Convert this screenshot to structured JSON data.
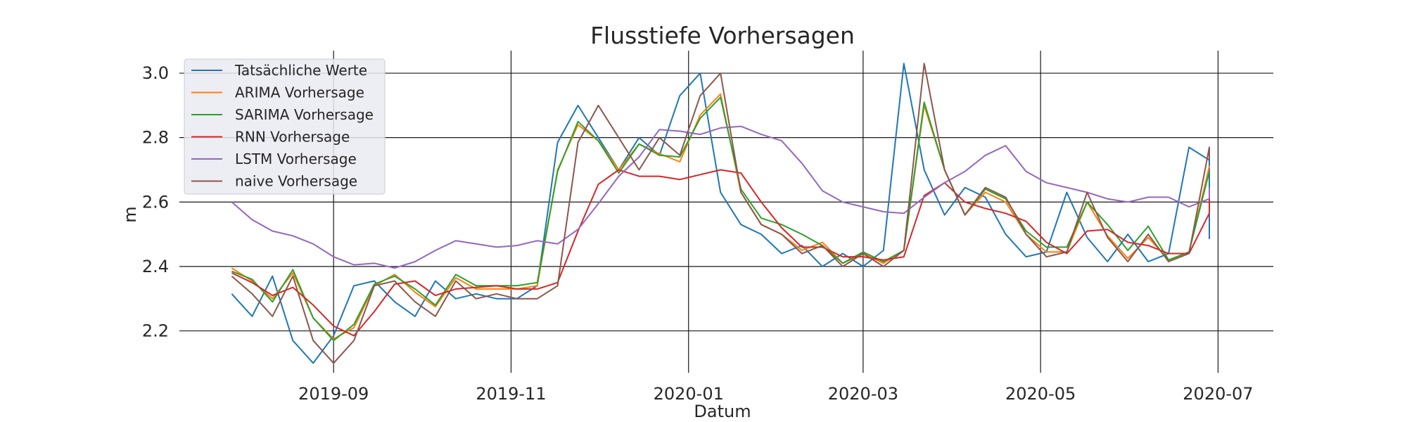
{
  "chart_data": {
    "type": "line",
    "title": "Flusstiefe Vorhersagen",
    "xlabel": "Datum",
    "ylabel": "m",
    "x_axis": "date",
    "xlim": [
      "2019-07-10",
      "2020-07-20"
    ],
    "ylim": [
      2.07,
      3.07
    ],
    "yticks": [
      2.2,
      2.4,
      2.6,
      2.8,
      3.0
    ],
    "ytick_labels": [
      "2.2",
      "2.4",
      "2.6",
      "2.8",
      "3.0"
    ],
    "xticks": [
      "2019-09-01",
      "2019-11-01",
      "2020-01-01",
      "2020-03-01",
      "2020-05-01",
      "2020-07-01"
    ],
    "xtick_labels": [
      "2019-09",
      "2019-11",
      "2020-01",
      "2020-03",
      "2020-05",
      "2020-07"
    ],
    "grid": true,
    "legend_position": "top-left",
    "x": [
      "2019-07-28",
      "2019-08-04",
      "2019-08-11",
      "2019-08-18",
      "2019-08-25",
      "2019-09-01",
      "2019-09-08",
      "2019-09-15",
      "2019-09-22",
      "2019-09-29",
      "2019-10-06",
      "2019-10-13",
      "2019-10-20",
      "2019-10-27",
      "2019-11-03",
      "2019-11-10",
      "2019-11-17",
      "2019-11-24",
      "2019-12-01",
      "2019-12-08",
      "2019-12-15",
      "2019-12-22",
      "2019-12-29",
      "2020-01-05",
      "2020-01-12",
      "2020-01-19",
      "2020-01-26",
      "2020-02-02",
      "2020-02-09",
      "2020-02-16",
      "2020-02-23",
      "2020-03-01",
      "2020-03-08",
      "2020-03-15",
      "2020-03-22",
      "2020-03-29",
      "2020-04-05",
      "2020-04-12",
      "2020-04-19",
      "2020-04-26",
      "2020-05-03",
      "2020-05-10",
      "2020-05-17",
      "2020-05-24",
      "2020-05-31",
      "2020-06-07",
      "2020-06-14",
      "2020-06-21",
      "2020-06-28"
    ],
    "series": [
      {
        "name": "Tatsächliche Werte",
        "color": "#1f77b4",
        "values": [
          2.315,
          2.245,
          2.37,
          2.17,
          2.1,
          2.185,
          2.34,
          2.355,
          2.29,
          2.245,
          2.355,
          2.3,
          2.315,
          2.3,
          2.3,
          2.34,
          2.785,
          2.9,
          2.8,
          2.7,
          2.8,
          2.745,
          2.93,
          3.0,
          2.63,
          2.53,
          2.5,
          2.44,
          2.465,
          2.4,
          2.44,
          2.4,
          2.45,
          3.03,
          2.7,
          2.56,
          2.645,
          2.615,
          2.5,
          2.43,
          2.445,
          2.63,
          2.49,
          2.415,
          2.5,
          2.415,
          2.44,
          2.77,
          2.73
        ]
      },
      {
        "name": "ARIMA Vorhersage",
        "color": "#ff7f0e",
        "values": [
          2.395,
          2.355,
          2.3,
          2.38,
          2.24,
          2.175,
          2.21,
          2.34,
          2.375,
          2.32,
          2.275,
          2.365,
          2.33,
          2.33,
          2.33,
          2.34,
          2.7,
          2.84,
          2.79,
          2.7,
          2.78,
          2.75,
          2.725,
          2.87,
          2.935,
          2.63,
          2.53,
          2.5,
          2.45,
          2.475,
          2.41,
          2.44,
          2.41,
          2.45,
          2.9,
          2.7,
          2.56,
          2.63,
          2.6,
          2.5,
          2.445,
          2.445,
          2.6,
          2.495,
          2.425,
          2.49,
          2.42,
          2.445,
          2.71
        ]
      },
      {
        "name": "SARIMA Vorhersage",
        "color": "#2ca02c",
        "values": [
          2.385,
          2.36,
          2.29,
          2.39,
          2.24,
          2.17,
          2.22,
          2.345,
          2.37,
          2.33,
          2.28,
          2.375,
          2.34,
          2.34,
          2.34,
          2.35,
          2.695,
          2.85,
          2.79,
          2.69,
          2.78,
          2.745,
          2.74,
          2.86,
          2.925,
          2.64,
          2.55,
          2.53,
          2.5,
          2.465,
          2.41,
          2.445,
          2.415,
          2.45,
          2.91,
          2.7,
          2.56,
          2.64,
          2.61,
          2.51,
          2.46,
          2.46,
          2.6,
          2.53,
          2.45,
          2.525,
          2.42,
          2.445,
          2.695
        ]
      },
      {
        "name": "RNN Vorhersage",
        "color": "#d62728",
        "values": [
          2.38,
          2.35,
          2.31,
          2.335,
          2.28,
          2.215,
          2.185,
          2.26,
          2.345,
          2.355,
          2.31,
          2.33,
          2.335,
          2.34,
          2.33,
          2.33,
          2.35,
          2.51,
          2.655,
          2.7,
          2.68,
          2.68,
          2.67,
          2.685,
          2.7,
          2.69,
          2.6,
          2.52,
          2.46,
          2.46,
          2.43,
          2.43,
          2.42,
          2.43,
          2.62,
          2.66,
          2.6,
          2.58,
          2.565,
          2.54,
          2.475,
          2.44,
          2.51,
          2.515,
          2.475,
          2.465,
          2.44,
          2.44,
          2.565
        ]
      },
      {
        "name": "LSTM Vorhersage",
        "color": "#9467bd",
        "values": [
          2.6,
          2.545,
          2.51,
          2.495,
          2.47,
          2.43,
          2.405,
          2.41,
          2.395,
          2.415,
          2.45,
          2.48,
          2.47,
          2.46,
          2.465,
          2.48,
          2.47,
          2.515,
          2.595,
          2.68,
          2.74,
          2.825,
          2.82,
          2.81,
          2.83,
          2.835,
          2.81,
          2.79,
          2.72,
          2.635,
          2.6,
          2.585,
          2.57,
          2.565,
          2.615,
          2.66,
          2.695,
          2.745,
          2.775,
          2.695,
          2.66,
          2.645,
          2.63,
          2.61,
          2.6,
          2.615,
          2.615,
          2.585,
          2.61
        ]
      },
      {
        "name": "naive Vorhersage",
        "color": "#8c564b",
        "values": [
          2.37,
          2.315,
          2.245,
          2.37,
          2.17,
          2.1,
          2.17,
          2.34,
          2.355,
          2.29,
          2.245,
          2.355,
          2.3,
          2.315,
          2.3,
          2.3,
          2.34,
          2.785,
          2.9,
          2.8,
          2.7,
          2.8,
          2.745,
          2.93,
          3.0,
          2.63,
          2.53,
          2.5,
          2.44,
          2.465,
          2.4,
          2.44,
          2.4,
          2.45,
          3.03,
          2.7,
          2.56,
          2.645,
          2.615,
          2.5,
          2.43,
          2.445,
          2.63,
          2.49,
          2.415,
          2.5,
          2.415,
          2.44,
          2.77
        ]
      }
    ],
    "series_last_values": {
      "Tatsächliche Werte": 2.485,
      "ARIMA Vorhersage": 2.705,
      "SARIMA Vorhersage": 2.695,
      "RNN Vorhersage": 2.635,
      "LSTM Vorhersage": 2.645,
      "naive Vorhersage": 2.73
    }
  }
}
